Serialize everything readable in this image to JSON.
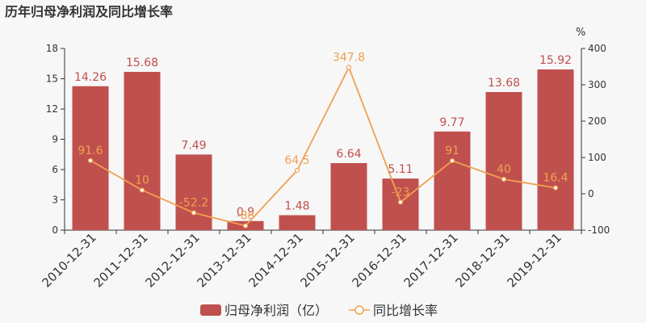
{
  "chart_data": {
    "type": "bar",
    "title": "历年归母净利润及同比增长率",
    "categories": [
      "2010-12-31",
      "2011-12-31",
      "2012-12-31",
      "2013-12-31",
      "2014-12-31",
      "2015-12-31",
      "2016-12-31",
      "2017-12-31",
      "2018-12-31",
      "2019-12-31"
    ],
    "series": [
      {
        "name": "归母净利润（亿）",
        "type": "bar",
        "axis": "left",
        "values": [
          14.26,
          15.68,
          7.49,
          0.9,
          1.48,
          6.64,
          5.11,
          9.77,
          13.68,
          15.92
        ],
        "labels": [
          "14.26",
          "15.68",
          "7.49",
          "0.9",
          "1.48",
          "6.64",
          "5.11",
          "9.77",
          "13.68",
          "15.92"
        ]
      },
      {
        "name": "同比增长率",
        "type": "line",
        "axis": "right",
        "values": [
          91.6,
          10,
          -52.2,
          -88,
          64.5,
          347.8,
          -23,
          91,
          40,
          16.4
        ],
        "labels": [
          "91.6",
          "10",
          "-52.2",
          "-88",
          "64.5",
          "347.8",
          "-23",
          "91",
          "40",
          "16.4"
        ]
      }
    ],
    "y_left": {
      "min": 0,
      "max": 18,
      "ticks": [
        0,
        3,
        6,
        9,
        12,
        15,
        18
      ]
    },
    "y_right": {
      "min": -100,
      "max": 400,
      "ticks": [
        -100,
        0,
        100,
        200,
        300,
        400
      ],
      "unit": "%"
    },
    "legend_position": "bottom-center",
    "grid": false,
    "colors": {
      "bar": "#c0504d",
      "line": "#f0a050",
      "axis": "#333333"
    }
  }
}
